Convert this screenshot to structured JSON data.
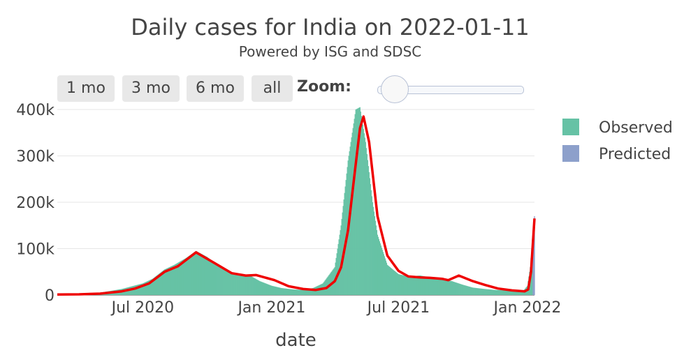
{
  "header": {
    "title": "Daily cases for India on 2022-01-11",
    "subtitle": "Powered by ISG and SDSC"
  },
  "controls": {
    "buttons": [
      "1 mo",
      "3 mo",
      "6 mo",
      "all"
    ],
    "zoom_label": "Zoom:"
  },
  "colors": {
    "observed": "#66c2a5",
    "predicted": "#8da0cb",
    "trend": "#ee0000",
    "grid": "#e6e6e6"
  },
  "chart_data": {
    "type": "bar",
    "xlabel": "date",
    "x_ticks": [
      "Jul 2020",
      "Jan 2021",
      "Jul 2021",
      "Jan 2022"
    ],
    "y_ticks": [
      "0",
      "100k",
      "200k",
      "300k",
      "400k"
    ],
    "ylim": [
      0,
      400000
    ],
    "x_range": [
      "2020-03-01",
      "2022-01-11"
    ],
    "legend": {
      "position": "right",
      "entries": [
        "Observed",
        "Predicted"
      ]
    },
    "series": [
      {
        "name": "Observed",
        "kind": "bar",
        "x": [
          "2020-03-01",
          "2020-04-01",
          "2020-05-01",
          "2020-06-01",
          "2020-07-01",
          "2020-07-15",
          "2020-08-01",
          "2020-08-15",
          "2020-09-01",
          "2020-09-15",
          "2020-10-01",
          "2020-10-15",
          "2020-11-01",
          "2020-11-15",
          "2020-12-01",
          "2020-12-15",
          "2021-01-01",
          "2021-01-15",
          "2021-02-01",
          "2021-02-15",
          "2021-03-01",
          "2021-03-15",
          "2021-04-01",
          "2021-04-10",
          "2021-04-20",
          "2021-05-01",
          "2021-05-07",
          "2021-05-15",
          "2021-05-25",
          "2021-06-01",
          "2021-06-15",
          "2021-07-01",
          "2021-07-15",
          "2021-08-01",
          "2021-08-15",
          "2021-09-01",
          "2021-09-15",
          "2021-10-01",
          "2021-10-15",
          "2021-11-01",
          "2021-11-15",
          "2021-12-01",
          "2021-12-15",
          "2021-12-25",
          "2022-01-01",
          "2022-01-05",
          "2022-01-08",
          "2022-01-10"
        ],
        "values": [
          200,
          1500,
          5000,
          13000,
          25000,
          35000,
          55000,
          65000,
          80000,
          95000,
          82000,
          65000,
          48000,
          44000,
          42000,
          30000,
          20000,
          15000,
          12000,
          11000,
          15000,
          25000,
          60000,
          150000,
          290000,
          400000,
          405000,
          330000,
          200000,
          130000,
          65000,
          45000,
          40000,
          42000,
          38000,
          35000,
          30000,
          22000,
          16000,
          13000,
          11000,
          10000,
          8000,
          7000,
          20000,
          60000,
          120000,
          160000
        ]
      },
      {
        "name": "Predicted",
        "kind": "bar",
        "x": [
          "2022-01-09",
          "2022-01-10",
          "2022-01-11"
        ],
        "values": [
          130000,
          150000,
          170000
        ]
      },
      {
        "name": "",
        "kind": "line",
        "x": [
          "2020-03-01",
          "2020-04-01",
          "2020-05-01",
          "2020-06-01",
          "2020-06-20",
          "2020-07-10",
          "2020-08-01",
          "2020-08-20",
          "2020-09-15",
          "2020-10-10",
          "2020-11-05",
          "2020-11-25",
          "2020-12-10",
          "2021-01-05",
          "2021-01-25",
          "2021-02-15",
          "2021-03-05",
          "2021-03-20",
          "2021-04-01",
          "2021-04-10",
          "2021-04-20",
          "2021-04-30",
          "2021-05-07",
          "2021-05-12",
          "2021-05-20",
          "2021-06-01",
          "2021-06-15",
          "2021-07-01",
          "2021-07-15",
          "2021-08-01",
          "2021-08-15",
          "2021-09-01",
          "2021-09-10",
          "2021-09-25",
          "2021-10-15",
          "2021-11-01",
          "2021-11-20",
          "2021-12-10",
          "2021-12-28",
          "2022-01-02",
          "2022-01-06",
          "2022-01-11"
        ],
        "values": [
          1000,
          1500,
          3000,
          8000,
          14000,
          25000,
          50000,
          62000,
          92000,
          70000,
          47000,
          42000,
          43000,
          32000,
          19000,
          13000,
          11000,
          15000,
          30000,
          60000,
          140000,
          270000,
          360000,
          385000,
          330000,
          170000,
          85000,
          52000,
          40000,
          38000,
          37000,
          35000,
          32000,
          42000,
          30000,
          22000,
          14000,
          10000,
          8000,
          12000,
          50000,
          165000
        ]
      }
    ]
  }
}
